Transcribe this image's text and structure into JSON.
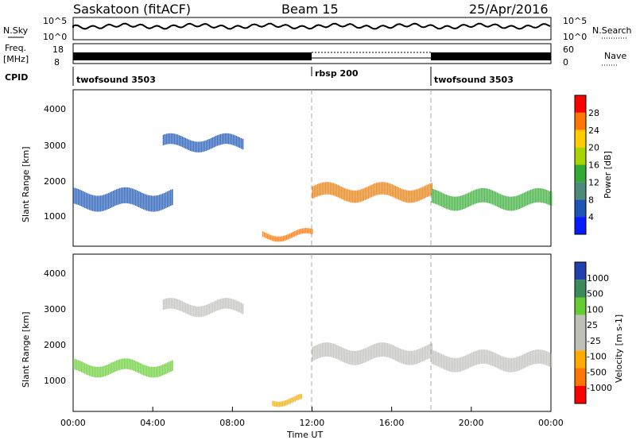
{
  "header": {
    "station": "Saskatoon (fitACF)",
    "beam": "Beam 15",
    "date": "25/Apr/2016"
  },
  "top_panels": {
    "nsky_label": "N.Sky",
    "nsky_ticks": [
      "10^5",
      "10^0"
    ],
    "nsearch_label": "N.Search",
    "nsearch_ticks": [
      "10^5",
      "10^0"
    ],
    "freq_label": "Freq.",
    "freq_unit": "[MHz]",
    "freq_ticks": [
      "18",
      "8"
    ],
    "nave_label": "Nave",
    "nave_ticks": [
      "60",
      "0"
    ],
    "cpid_label": "CPID",
    "cpid_segments": [
      {
        "label": "twofsound 3503",
        "start": 0,
        "end": 12
      },
      {
        "label": "rbsp 200",
        "start": 12,
        "end": 18
      },
      {
        "label": "twofsound 3503",
        "start": 18,
        "end": 24
      }
    ]
  },
  "chart_data": [
    {
      "type": "heatmap",
      "name": "power",
      "ylabel": "Slant Range [km]",
      "yticks": [
        "4000",
        "3000",
        "2000",
        "1000"
      ],
      "ylim": [
        180,
        4600
      ],
      "xlim": [
        0,
        24
      ],
      "colorbar_label": "Power [dB]",
      "colorbar_ticks": [
        "28",
        "24",
        "20",
        "16",
        "12",
        "8",
        "4"
      ],
      "colorbar_colors": [
        "#ff0000",
        "#ff7700",
        "#ffcc00",
        "#a8d400",
        "#33aa33",
        "#4d8a7a",
        "#1a55b5",
        "#0a1aff"
      ],
      "dashed_lines_ut": [
        12,
        18
      ],
      "features": [
        {
          "start": 0.0,
          "end": 5.0,
          "base_km": 1500,
          "width_km": 450,
          "color": "#1a55b5"
        },
        {
          "start": 4.5,
          "end": 8.5,
          "base_km": 3100,
          "width_km": 300,
          "color": "#1a55b5"
        },
        {
          "start": 12.0,
          "end": 18.0,
          "base_km": 1700,
          "width_km": 350,
          "color": "#ff7700"
        },
        {
          "start": 18.0,
          "end": 24.0,
          "base_km": 1500,
          "width_km": 400,
          "color": "#33aa33"
        },
        {
          "start": 9.5,
          "end": 12.0,
          "base_km": 500,
          "width_km": 150,
          "color": "#ff7700"
        }
      ]
    },
    {
      "type": "heatmap",
      "name": "velocity",
      "ylabel": "Slant Range [km]",
      "yticks": [
        "4000",
        "3000",
        "2000",
        "1000"
      ],
      "ylim": [
        180,
        4600
      ],
      "xlim": [
        0,
        24
      ],
      "colorbar_label": "Velocity [m s-1]",
      "colorbar_ticks": [
        "1000",
        "500",
        "100",
        "25",
        "-25",
        "-100",
        "-500",
        "-1000"
      ],
      "colorbar_colors": [
        "#2040b0",
        "#3a8a5a",
        "#66cc33",
        "#c0c0bb",
        "#c0c0bb",
        "#ffaa00",
        "#ff7700",
        "#ff0000"
      ],
      "dashed_lines_ut": [
        12,
        18
      ],
      "features": [
        {
          "start": 0.0,
          "end": 5.0,
          "base_km": 1400,
          "width_km": 300,
          "color": "#66cc33"
        },
        {
          "start": 4.5,
          "end": 8.5,
          "base_km": 3100,
          "width_km": 300,
          "color": "#c0c0bb"
        },
        {
          "start": 12.0,
          "end": 18.0,
          "base_km": 1800,
          "width_km": 400,
          "color": "#c0c0bb"
        },
        {
          "start": 18.0,
          "end": 24.0,
          "base_km": 1600,
          "width_km": 400,
          "color": "#c0c0bb"
        },
        {
          "start": 10.0,
          "end": 11.5,
          "base_km": 500,
          "width_km": 150,
          "color": "#ffaa00"
        }
      ]
    }
  ],
  "xaxis": {
    "ticks": [
      "00:00",
      "04:00",
      "08:00",
      "12:00",
      "16:00",
      "20:00",
      "00:00"
    ],
    "label": "Time UT"
  }
}
